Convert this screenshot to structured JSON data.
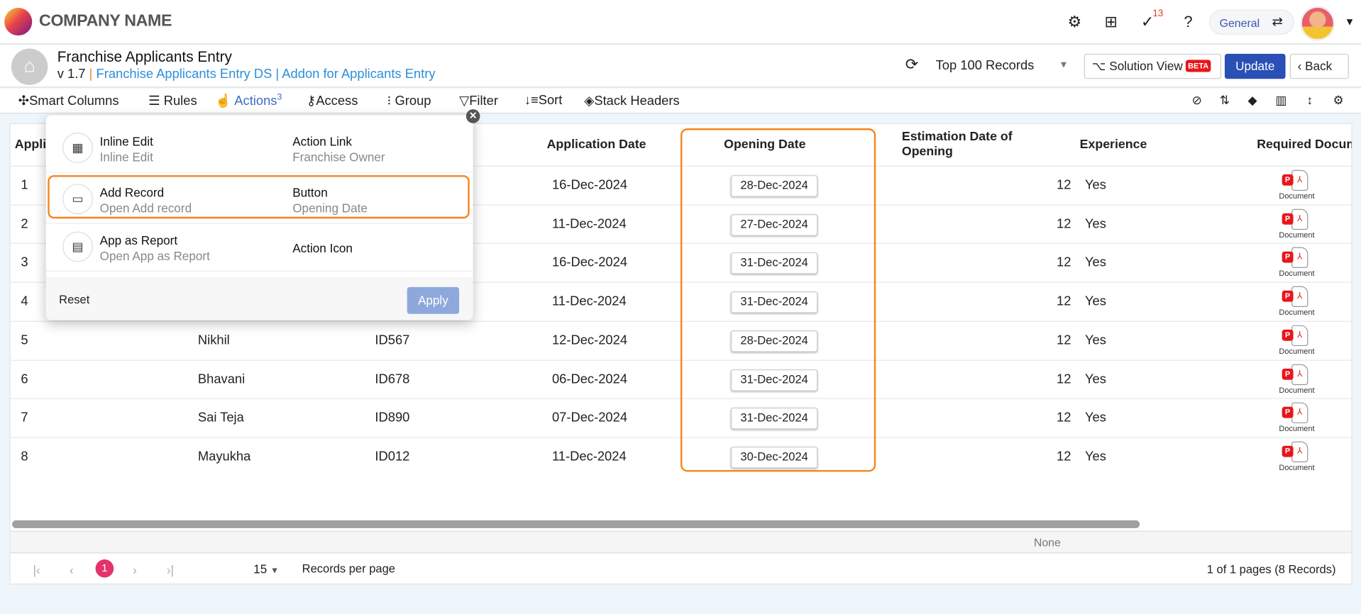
{
  "app": {
    "company": "COMPANY NAME",
    "notifications": "13",
    "workspace": "General"
  },
  "header": {
    "title": "Franchise Applicants Entry",
    "version": "v 1.7",
    "sep": "|",
    "ds": "Franchise Applicants Entry DS",
    "addon": "Addon for Applicants Entry",
    "records_select": "Top 100 Records",
    "solution_view": "Solution View",
    "beta": "BETA",
    "update": "Update",
    "back": "Back"
  },
  "toolbar": {
    "smart_columns": "Smart Columns",
    "rules": "Rules",
    "actions": "Actions",
    "actions_count": "3",
    "access": "Access",
    "group": "Group",
    "filter": "Filter",
    "sort": "Sort",
    "stack_headers": "Stack Headers"
  },
  "table": {
    "columns": [
      "Appli",
      "",
      "",
      "Application Date",
      "Opening Date",
      "Estimation Date of Opening",
      "Experience",
      "Required Docum"
    ],
    "rows": [
      {
        "no": "1",
        "name": "",
        "id": "",
        "app_date": "16-Dec-2024",
        "opening": "28-Dec-2024",
        "est": "12",
        "exp": "Yes",
        "doc": "Document"
      },
      {
        "no": "2",
        "name": "",
        "id": "",
        "app_date": "11-Dec-2024",
        "opening": "27-Dec-2024",
        "est": "12",
        "exp": "Yes",
        "doc": "Document"
      },
      {
        "no": "3",
        "name": "",
        "id": "",
        "app_date": "16-Dec-2024",
        "opening": "31-Dec-2024",
        "est": "12",
        "exp": "Yes",
        "doc": "Document"
      },
      {
        "no": "4",
        "name": "",
        "id": "",
        "app_date": "11-Dec-2024",
        "opening": "31-Dec-2024",
        "est": "12",
        "exp": "Yes",
        "doc": "Document"
      },
      {
        "no": "5",
        "name": "Nikhil",
        "id": "ID567",
        "app_date": "12-Dec-2024",
        "opening": "28-Dec-2024",
        "est": "12",
        "exp": "Yes",
        "doc": "Document"
      },
      {
        "no": "6",
        "name": "Bhavani",
        "id": "ID678",
        "app_date": "06-Dec-2024",
        "opening": "31-Dec-2024",
        "est": "12",
        "exp": "Yes",
        "doc": "Document"
      },
      {
        "no": "7",
        "name": "Sai Teja",
        "id": "ID890",
        "app_date": "07-Dec-2024",
        "opening": "31-Dec-2024",
        "est": "12",
        "exp": "Yes",
        "doc": "Document"
      },
      {
        "no": "8",
        "name": "Mayukha",
        "id": "ID012",
        "app_date": "11-Dec-2024",
        "opening": "30-Dec-2024",
        "est": "12",
        "exp": "Yes",
        "doc": "Document"
      }
    ],
    "summary": "None"
  },
  "pagination": {
    "current": "1",
    "per_page": "15",
    "per_page_label": "Records per page",
    "info": "1 of 1 pages (8 Records)"
  },
  "popup": {
    "items": [
      {
        "title": "Inline Edit",
        "sub": "Inline Edit",
        "type": "Action Link",
        "target": "Franchise Owner",
        "icon": "table-icon"
      },
      {
        "title": "Add Record",
        "sub": "Open Add record",
        "type": "Button",
        "target": "Opening Date",
        "icon": "button-icon"
      },
      {
        "title": "App as Report",
        "sub": "Open App as Report",
        "type": "Action Icon",
        "target": "",
        "icon": "report-icon"
      }
    ],
    "reset": "Reset",
    "apply": "Apply"
  },
  "colors": {
    "accent": "#2a4fb5",
    "highlight": "#f5861f",
    "page_active": "#e2336b",
    "link": "#2d8fd9"
  }
}
